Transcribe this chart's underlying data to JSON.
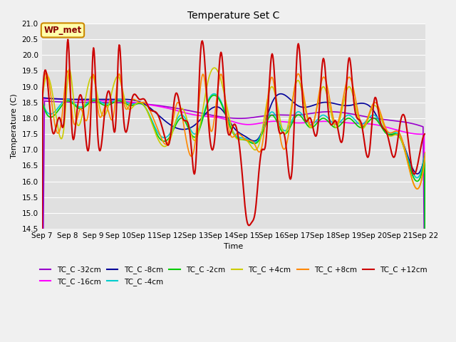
{
  "title": "Temperature Set C",
  "xlabel": "Time",
  "ylabel": "Temperature (C)",
  "ylim": [
    14.5,
    21.0
  ],
  "yticks": [
    14.5,
    15.0,
    15.5,
    16.0,
    16.5,
    17.0,
    17.5,
    18.0,
    18.5,
    19.0,
    19.5,
    20.0,
    20.5,
    21.0
  ],
  "x_labels": [
    "Sep 7",
    "Sep 8",
    "Sep 9",
    "Sep 10",
    "Sep 11",
    "Sep 12",
    "Sep 13",
    "Sep 14",
    "Sep 15",
    "Sep 16",
    "Sep 17",
    "Sep 18",
    "Sep 19",
    "Sep 20",
    "Sep 21",
    "Sep 22"
  ],
  "series_order": [
    "TC_C -32cm",
    "TC_C -16cm",
    "TC_C -8cm",
    "TC_C -4cm",
    "TC_C -2cm",
    "TC_C +4cm",
    "TC_C +8cm",
    "TC_C +12cm"
  ],
  "colors": {
    "TC_C -32cm": "#9900cc",
    "TC_C -16cm": "#ff00ff",
    "TC_C -8cm": "#000099",
    "TC_C -4cm": "#00cccc",
    "TC_C -2cm": "#00cc00",
    "TC_C +4cm": "#cccc00",
    "TC_C +8cm": "#ff8800",
    "TC_C +12cm": "#cc0000"
  },
  "lw": {
    "TC_C -32cm": 1.2,
    "TC_C -16cm": 1.2,
    "TC_C -8cm": 1.2,
    "TC_C -4cm": 1.2,
    "TC_C -2cm": 1.2,
    "TC_C +4cm": 1.2,
    "TC_C +8cm": 1.2,
    "TC_C +12cm": 1.5
  },
  "wp_met_box": {
    "text": "WP_met",
    "facecolor": "#ffffaa",
    "edgecolor": "#cc8800",
    "textcolor": "#880000"
  },
  "background_color": "#e0e0e0",
  "grid_color": "#ffffff",
  "fig_facecolor": "#f0f0f0",
  "title_fontsize": 10,
  "label_fontsize": 8,
  "tick_fontsize": 7.5
}
